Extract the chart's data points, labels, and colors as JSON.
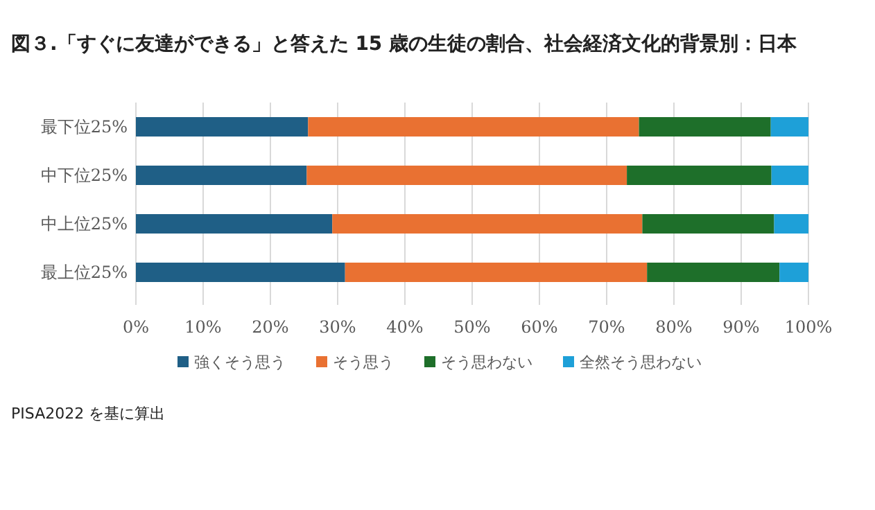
{
  "chart_data": {
    "type": "bar",
    "orientation": "horizontal",
    "stacked": true,
    "title": "図３.「すぐに友達ができる」と答えた 15 歳の生徒の割合、社会経済文化的背景別：日本",
    "categories": [
      "最下位25%",
      "中下位25%",
      "中上位25%",
      "最上位25%"
    ],
    "series": [
      {
        "name": "強くそう思う",
        "color": "#1f5f86",
        "values": [
          25.6,
          25.4,
          29.2,
          31.1
        ]
      },
      {
        "name": "そう思う",
        "color": "#e97132",
        "values": [
          49.2,
          47.6,
          46.1,
          44.9
        ]
      },
      {
        "name": "そう思わない",
        "color": "#1e6f2a",
        "values": [
          19.6,
          21.5,
          19.6,
          19.7
        ]
      },
      {
        "name": "全然そう思わない",
        "color": "#1ea0d8",
        "values": [
          5.6,
          5.5,
          5.1,
          4.3
        ]
      }
    ],
    "xlim": [
      0,
      100
    ],
    "xticks": [
      {
        "value": 0,
        "label": "0%"
      },
      {
        "value": 10,
        "label": "10%"
      },
      {
        "value": 20,
        "label": "20%"
      },
      {
        "value": 30,
        "label": "30%"
      },
      {
        "value": 40,
        "label": "40%"
      },
      {
        "value": 50,
        "label": "50%"
      },
      {
        "value": 60,
        "label": "60%"
      },
      {
        "value": 70,
        "label": "70%"
      },
      {
        "value": 80,
        "label": "80%"
      },
      {
        "value": 90,
        "label": "90%"
      },
      {
        "value": 100,
        "label": "100%"
      }
    ],
    "grid": "x",
    "legend": "bottom",
    "annotations": [
      "PISA2022 を基に算出"
    ]
  }
}
